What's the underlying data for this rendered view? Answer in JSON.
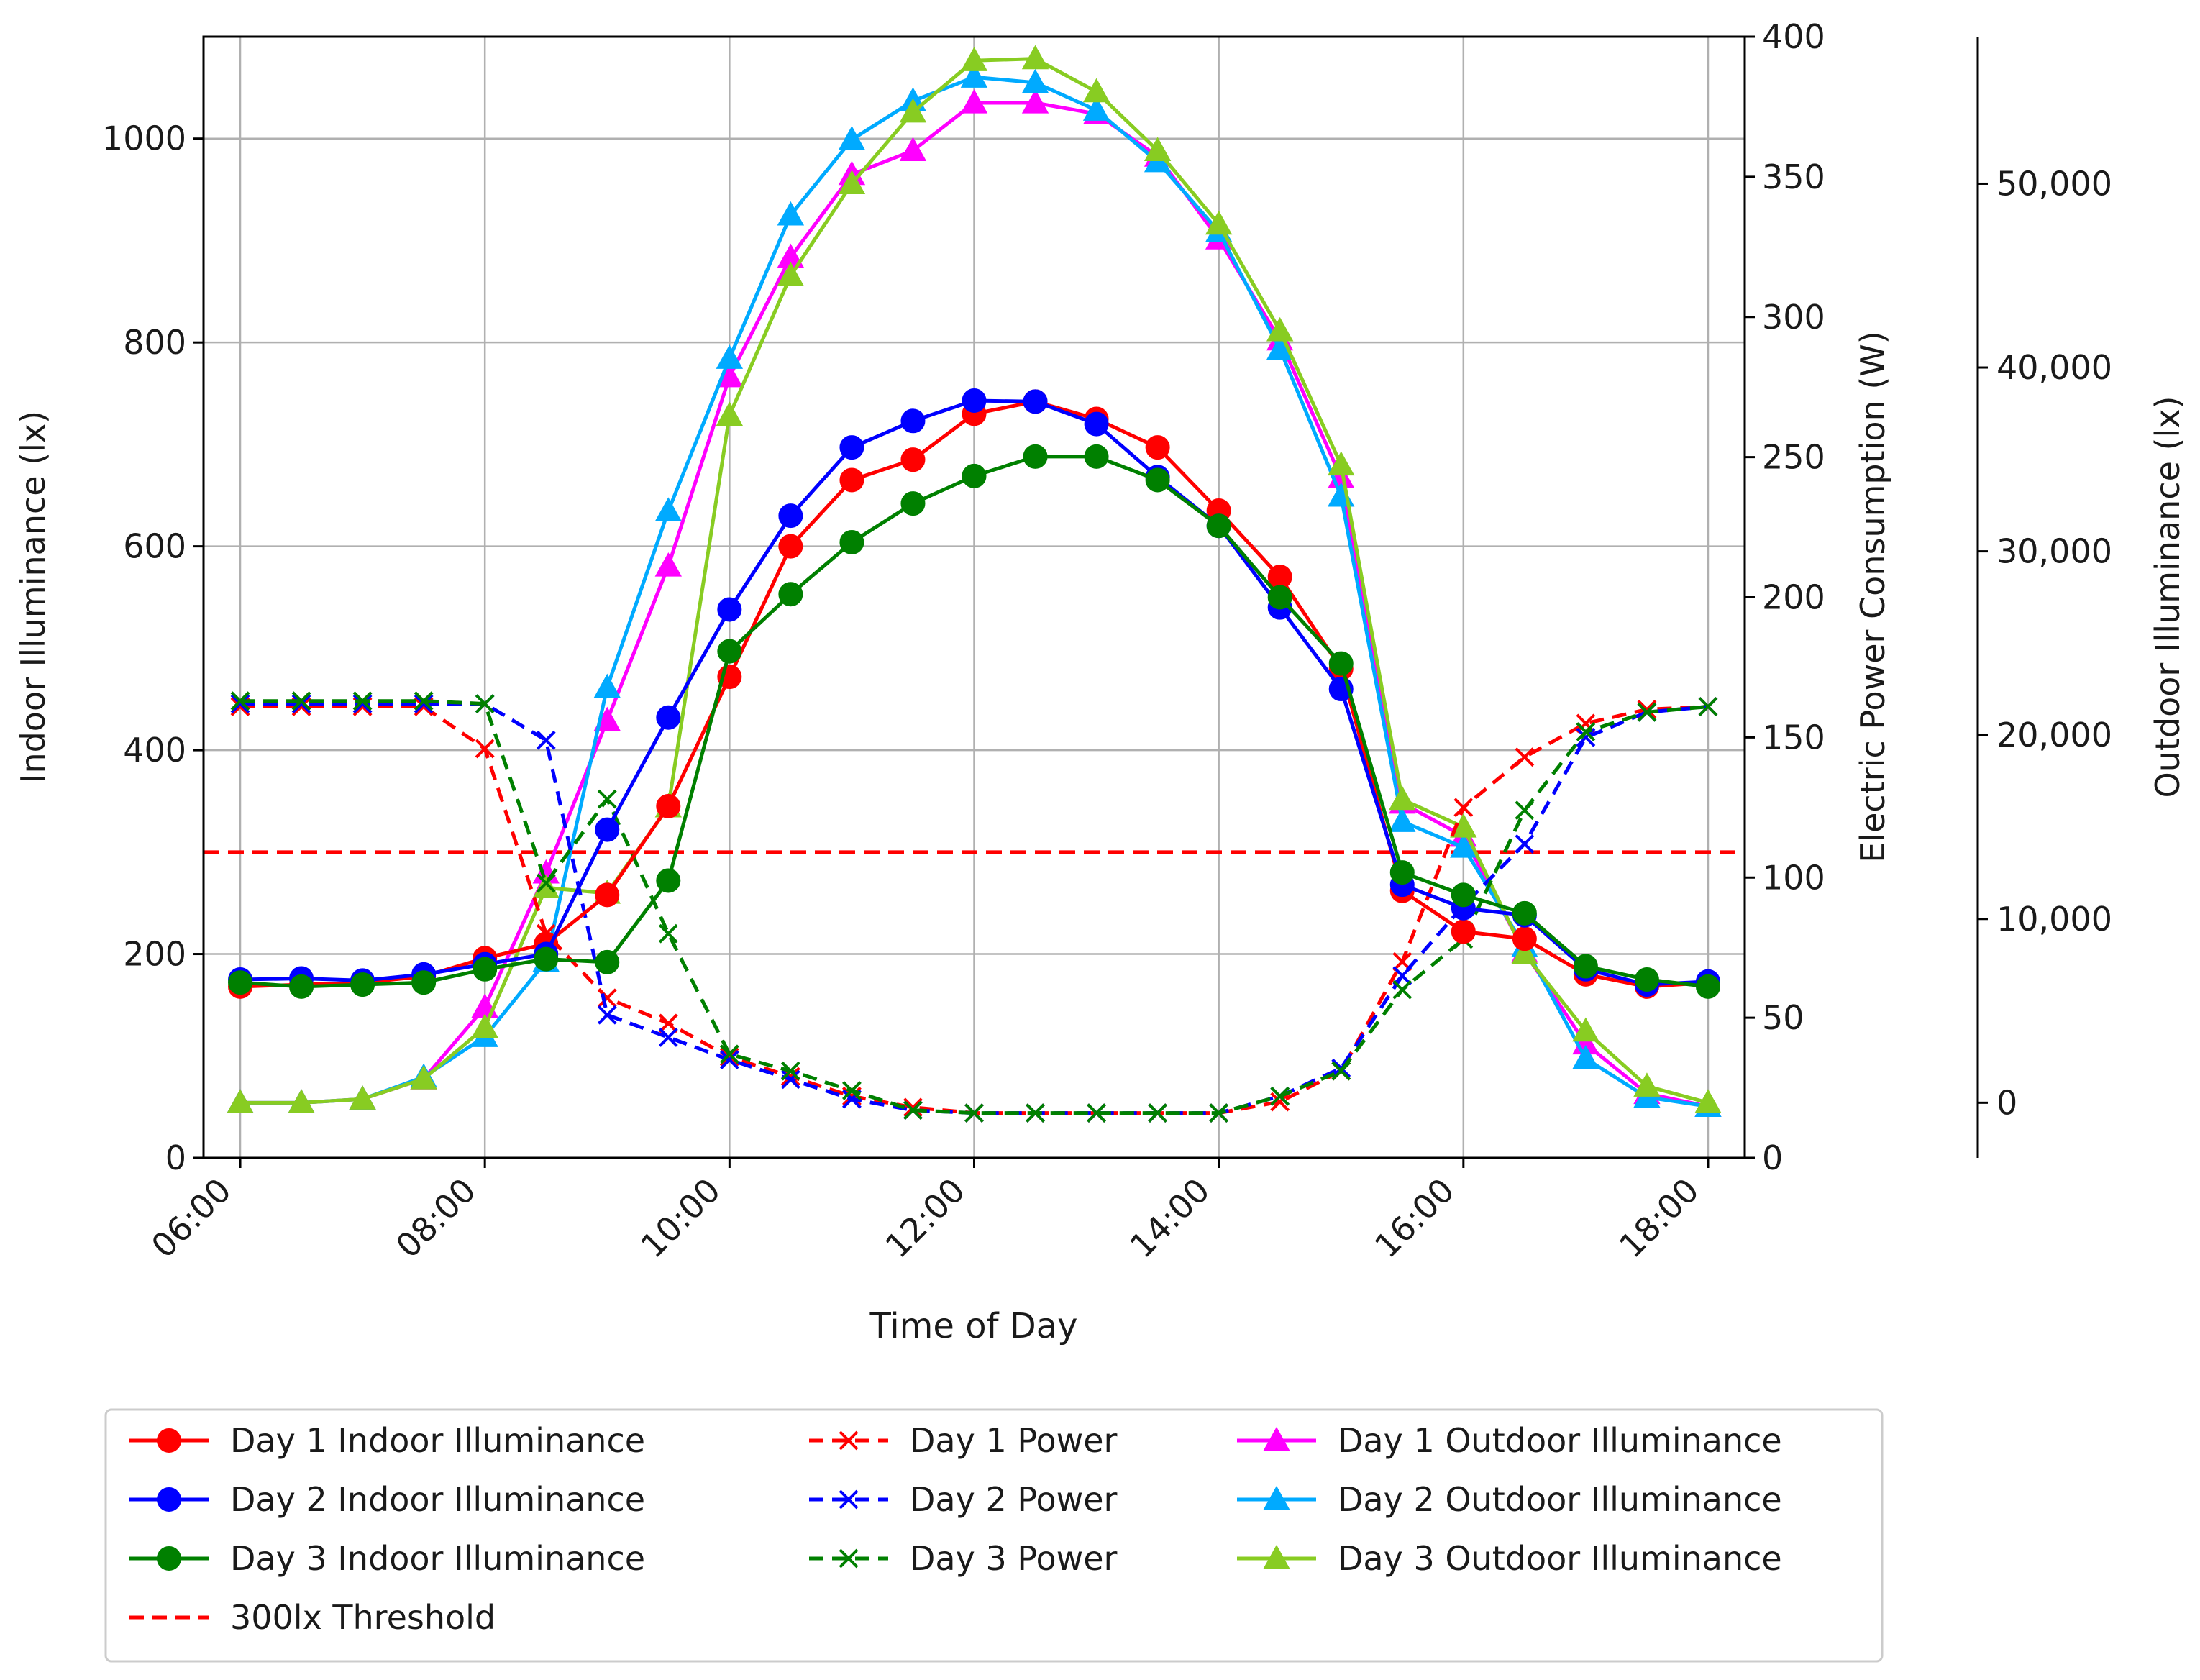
{
  "chart_data": {
    "type": "line",
    "xlabel": "Time of Day",
    "ylabel": "Indoor Illuminance (lx)",
    "y2label": "Electric Power Consumption (W)",
    "y3label": "Outdoor Illuminance (lx)",
    "xlim": [
      5.7,
      18.3
    ],
    "ylim": [
      0,
      1100
    ],
    "y2lim": [
      0,
      400
    ],
    "y3lim": [
      -3000,
      58000
    ],
    "grid": true,
    "legend_position": "bottom",
    "x_ticks": [
      6,
      8,
      10,
      12,
      14,
      16,
      18
    ],
    "x_tick_labels": [
      "06:00",
      "08:00",
      "10:00",
      "12:00",
      "14:00",
      "16:00",
      "18:00"
    ],
    "y_ticks": [
      0,
      200,
      400,
      600,
      800,
      1000
    ],
    "y_tick_labels": [
      "0",
      "200",
      "400",
      "600",
      "800",
      "1000"
    ],
    "y2_ticks": [
      0,
      50,
      100,
      150,
      200,
      250,
      300,
      350,
      400
    ],
    "y2_tick_labels": [
      "0",
      "50",
      "100",
      "150",
      "200",
      "250",
      "300",
      "350",
      "400"
    ],
    "y3_ticks": [
      0,
      10000,
      20000,
      30000,
      40000,
      50000
    ],
    "y3_tick_labels": [
      "0",
      "10,000",
      "20,000",
      "30,000",
      "40,000",
      "50,000"
    ],
    "x": [
      6,
      6.5,
      7,
      7.5,
      8,
      8.5,
      9,
      9.5,
      10,
      10.5,
      11,
      11.5,
      12,
      12.5,
      13,
      13.5,
      14,
      14.5,
      15,
      15.5,
      16,
      16.5,
      17,
      17.5,
      18
    ],
    "threshold": {
      "name": "300lx Threshold",
      "value": 300,
      "color": "#ff0000"
    },
    "series": [
      {
        "name": "Day 1 Indoor Illuminance",
        "axis": "indoor",
        "marker": "circle",
        "dash": false,
        "color": "#ff0000",
        "values": [
          168,
          170,
          172,
          178,
          196,
          210,
          258,
          345,
          472,
          600,
          665,
          685,
          730,
          742,
          725,
          697,
          635,
          570,
          480,
          262,
          222,
          215,
          180,
          168,
          172
        ]
      },
      {
        "name": "Day 2 Indoor Illuminance",
        "axis": "indoor",
        "marker": "circle",
        "dash": false,
        "color": "#0000ff",
        "values": [
          175,
          176,
          174,
          180,
          190,
          200,
          322,
          432,
          538,
          630,
          697,
          723,
          743,
          742,
          720,
          668,
          620,
          540,
          460,
          268,
          245,
          238,
          185,
          170,
          173
        ]
      },
      {
        "name": "Day 3 Indoor Illuminance",
        "axis": "indoor",
        "marker": "circle",
        "dash": false,
        "color": "#008000",
        "values": [
          172,
          168,
          170,
          172,
          185,
          195,
          192,
          272,
          497,
          553,
          604,
          642,
          669,
          688,
          688,
          665,
          620,
          550,
          485,
          280,
          258,
          240,
          188,
          175,
          168
        ]
      },
      {
        "name": "Day 1 Power",
        "axis": "power",
        "marker": "x",
        "dash": true,
        "color": "#ff0000",
        "values": [
          161,
          161,
          161,
          161,
          146,
          80,
          57,
          48,
          36,
          29,
          22,
          18,
          16,
          16,
          16,
          16,
          16,
          20,
          31,
          70,
          125,
          143,
          155,
          160,
          161
        ]
      },
      {
        "name": "Day 2 Power",
        "axis": "power",
        "marker": "x",
        "dash": true,
        "color": "#0000ff",
        "values": [
          162,
          162,
          162,
          162,
          162,
          149,
          51,
          43,
          35,
          28,
          21,
          17,
          16,
          16,
          16,
          16,
          16,
          22,
          32,
          65,
          90,
          112,
          150,
          159,
          161
        ]
      },
      {
        "name": "Day 3 Power",
        "axis": "power",
        "marker": "x",
        "dash": true,
        "color": "#008000",
        "values": [
          163,
          163,
          163,
          163,
          162,
          98,
          128,
          80,
          37,
          31,
          24,
          17,
          16,
          16,
          16,
          16,
          16,
          22,
          31,
          60,
          78,
          124,
          152,
          159,
          161
        ]
      },
      {
        "name": "Day 1 Outdoor Illuminance",
        "axis": "outdoor",
        "marker": "triangle",
        "dash": false,
        "color": "#ff00ff",
        "values": [
          0,
          0,
          200,
          1300,
          5200,
          12500,
          20800,
          29200,
          39500,
          46000,
          50500,
          51800,
          54400,
          54400,
          53800,
          51500,
          47000,
          41500,
          34000,
          16300,
          14500,
          8200,
          3200,
          500,
          -200
        ]
      },
      {
        "name": "Day 2 Outdoor Illuminance",
        "axis": "outdoor",
        "marker": "triangle",
        "dash": false,
        "color": "#00aaff",
        "values": [
          0,
          0,
          200,
          1400,
          3600,
          7700,
          22600,
          32200,
          40500,
          48300,
          52400,
          54500,
          55800,
          55500,
          54000,
          51200,
          47400,
          41000,
          33000,
          15300,
          13900,
          8500,
          2400,
          300,
          -200
        ]
      },
      {
        "name": "Day 3 Outdoor Illuminance",
        "axis": "outdoor",
        "marker": "triangle",
        "dash": false,
        "color": "#88cc22",
        "values": [
          0,
          0,
          200,
          1300,
          4100,
          11700,
          11400,
          16100,
          37400,
          45000,
          50000,
          53900,
          56700,
          56800,
          55000,
          51800,
          47800,
          42000,
          34700,
          16500,
          15000,
          8100,
          3900,
          900,
          0
        ]
      }
    ]
  }
}
